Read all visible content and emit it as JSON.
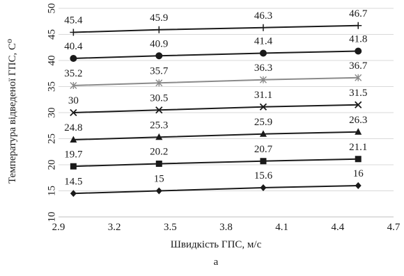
{
  "chart_data": {
    "type": "line",
    "xlabel": "Швидкість ГПС, м/с",
    "ylabel": "Температура відведеної ГПС, С⁰",
    "caption": "а",
    "xlim": [
      2.9,
      4.7
    ],
    "ylim": [
      10,
      50
    ],
    "x_ticks": [
      "2.9",
      "3.2",
      "3.5",
      "3.8",
      "4.1",
      "4.4",
      "4.7"
    ],
    "y_ticks": [
      "10",
      "15",
      "20",
      "25",
      "30",
      "35",
      "40",
      "45",
      "50"
    ],
    "grid": true,
    "x": [
      2.98,
      3.44,
      4.0,
      4.51
    ],
    "series": [
      {
        "marker": "plus",
        "color": "#1a1a1a",
        "values": [
          45.4,
          45.9,
          46.3,
          46.7
        ],
        "labels": [
          "45.4",
          "45.9",
          "46.3",
          "46.7"
        ]
      },
      {
        "marker": "circle",
        "color": "#1a1a1a",
        "values": [
          40.4,
          40.9,
          41.4,
          41.8
        ],
        "labels": [
          "40.4",
          "40.9",
          "41.4",
          "41.8"
        ]
      },
      {
        "marker": "star",
        "color": "#8a8a8a",
        "values": [
          35.2,
          35.7,
          36.3,
          36.7
        ],
        "labels": [
          "35.2",
          "35.7",
          "36.3",
          "36.7"
        ]
      },
      {
        "marker": "x",
        "color": "#1a1a1a",
        "values": [
          30,
          30.5,
          31.1,
          31.5
        ],
        "labels": [
          "30",
          "30.5",
          "31.1",
          "31.5"
        ]
      },
      {
        "marker": "triangle",
        "color": "#1a1a1a",
        "values": [
          24.8,
          25.3,
          25.9,
          26.3
        ],
        "labels": [
          "24.8",
          "25.3",
          "25.9",
          "26.3"
        ]
      },
      {
        "marker": "square",
        "color": "#1a1a1a",
        "values": [
          19.7,
          20.2,
          20.7,
          21.1
        ],
        "labels": [
          "19.7",
          "20.2",
          "20.7",
          "21.1"
        ]
      },
      {
        "marker": "diamond",
        "color": "#1a1a1a",
        "values": [
          14.5,
          15,
          15.6,
          16
        ],
        "labels": [
          "14.5",
          "15",
          "15.6",
          "16"
        ]
      }
    ]
  }
}
